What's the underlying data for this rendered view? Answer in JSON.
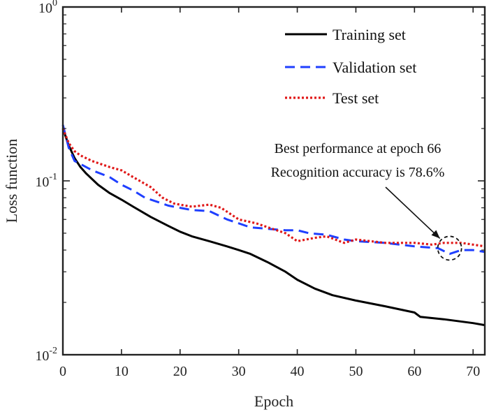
{
  "chart_data": {
    "type": "line",
    "xlabel": "Epoch",
    "ylabel": "Loss function",
    "xlim": [
      0,
      72
    ],
    "ylim": [
      0.01,
      1
    ],
    "yscale": "log",
    "grid": false,
    "legend_position": "top-right",
    "x_ticks": [
      0,
      10,
      20,
      30,
      40,
      50,
      60,
      70
    ],
    "x_tick_labels": [
      "0",
      "10",
      "20",
      "30",
      "40",
      "50",
      "60",
      "70"
    ],
    "y_ticks": [
      {
        "value": 1,
        "base": "10",
        "exp": "0"
      },
      {
        "value": 0.1,
        "base": "10",
        "exp": "-1"
      },
      {
        "value": 0.01,
        "base": "10",
        "exp": "-2"
      }
    ],
    "annotation": {
      "lines": [
        "Best performance at epoch 66",
        "Recognition accuracy is 78.6%"
      ],
      "x": 66,
      "y": 0.041
    },
    "series": [
      {
        "name": "Training set",
        "color": "#000000",
        "style": "solid",
        "x": [
          0,
          1,
          2,
          3,
          4,
          6,
          8,
          10,
          12,
          15,
          18,
          20,
          22,
          25,
          28,
          30,
          32,
          35,
          38,
          40,
          43,
          46,
          50,
          55,
          60,
          61,
          65,
          70,
          72
        ],
        "y": [
          0.2,
          0.16,
          0.135,
          0.12,
          0.11,
          0.095,
          0.085,
          0.078,
          0.071,
          0.062,
          0.055,
          0.051,
          0.048,
          0.045,
          0.042,
          0.04,
          0.038,
          0.034,
          0.03,
          0.027,
          0.024,
          0.022,
          0.0205,
          0.019,
          0.0175,
          0.0165,
          0.016,
          0.0152,
          0.0148
        ]
      },
      {
        "name": "Validation set",
        "color": "#1f3fff",
        "style": "dashed",
        "x": [
          0,
          1,
          2,
          3,
          5,
          8,
          10,
          12,
          14,
          16,
          18,
          20,
          22,
          25,
          28,
          30,
          32,
          35,
          38,
          40,
          42,
          45,
          48,
          50,
          55,
          60,
          64,
          66,
          68,
          70,
          72
        ],
        "y": [
          0.21,
          0.155,
          0.13,
          0.125,
          0.115,
          0.105,
          0.095,
          0.088,
          0.08,
          0.076,
          0.072,
          0.07,
          0.068,
          0.067,
          0.06,
          0.057,
          0.054,
          0.053,
          0.052,
          0.052,
          0.05,
          0.049,
          0.046,
          0.045,
          0.044,
          0.042,
          0.041,
          0.038,
          0.04,
          0.04,
          0.039
        ]
      },
      {
        "name": "Test set",
        "color": "#e01818",
        "style": "dotted",
        "x": [
          0,
          1,
          2,
          3,
          5,
          8,
          10,
          12,
          15,
          17,
          19,
          22,
          25,
          27,
          30,
          33,
          35,
          38,
          40,
          43,
          45,
          48,
          50,
          55,
          60,
          63,
          65,
          68,
          70,
          72
        ],
        "y": [
          0.2,
          0.165,
          0.148,
          0.14,
          0.13,
          0.12,
          0.115,
          0.105,
          0.092,
          0.08,
          0.074,
          0.071,
          0.073,
          0.07,
          0.06,
          0.057,
          0.054,
          0.05,
          0.045,
          0.047,
          0.048,
          0.044,
          0.046,
          0.044,
          0.044,
          0.043,
          0.044,
          0.044,
          0.043,
          0.042
        ]
      }
    ]
  }
}
